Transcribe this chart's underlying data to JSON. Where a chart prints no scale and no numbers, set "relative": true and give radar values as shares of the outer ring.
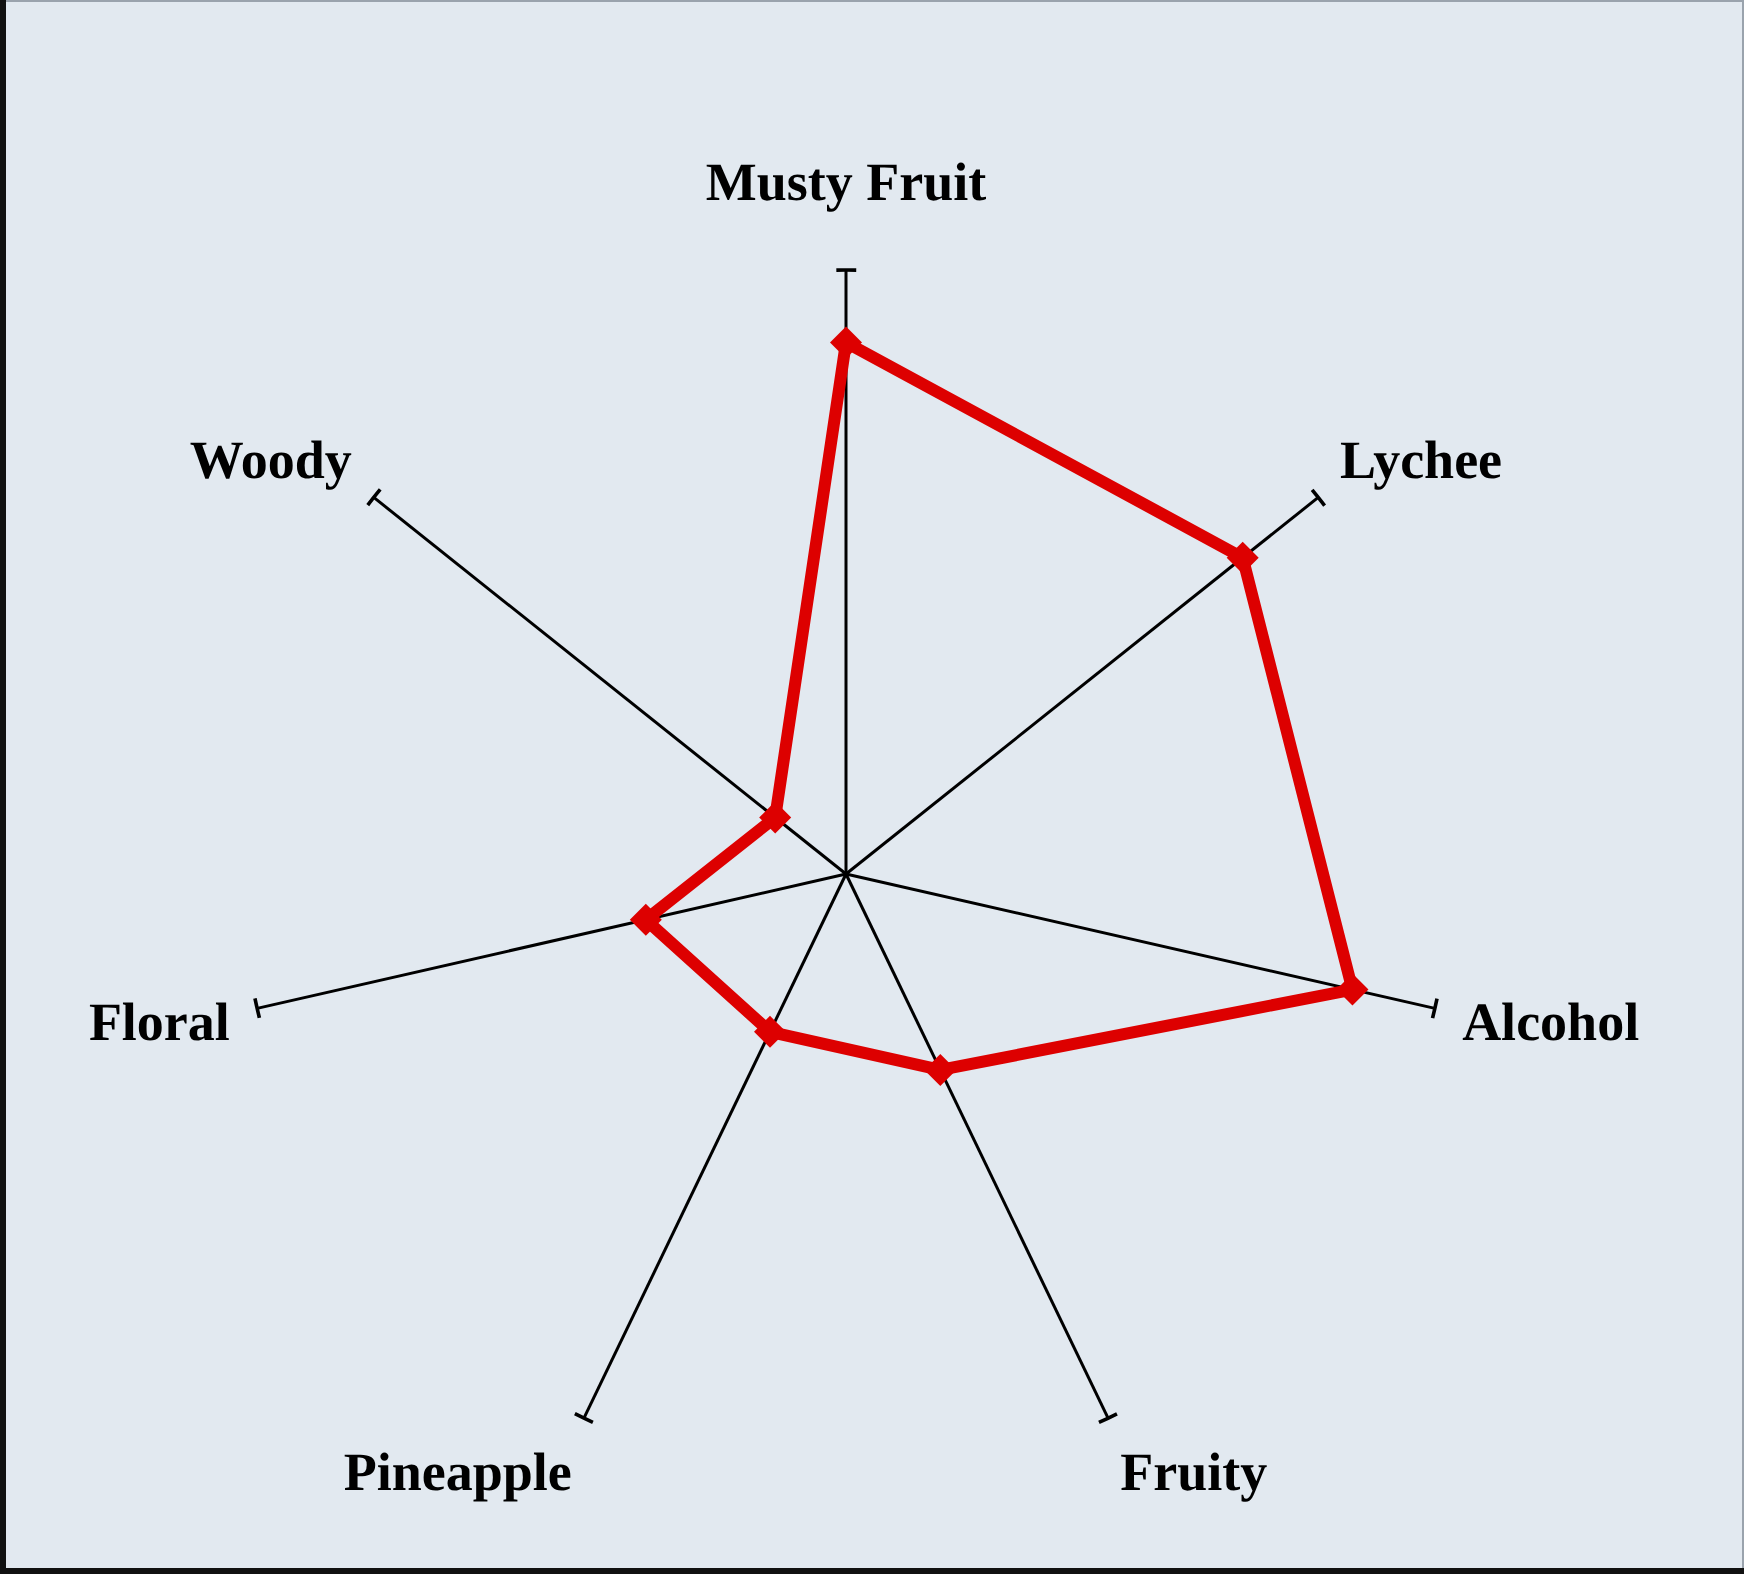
{
  "chart_data": {
    "type": "radar",
    "relative": true,
    "categories": [
      "Musty Fruit",
      "Lychee",
      "Alcohol",
      "Fruity",
      "Pineapple",
      "Floral",
      "Woody"
    ],
    "series": [
      {
        "color": "#dd0000",
        "values": [
          0.88,
          0.84,
          0.86,
          0.36,
          0.29,
          0.34,
          0.15
        ]
      }
    ],
    "marker": "diamond",
    "line_style": "solid",
    "grid": true
  }
}
